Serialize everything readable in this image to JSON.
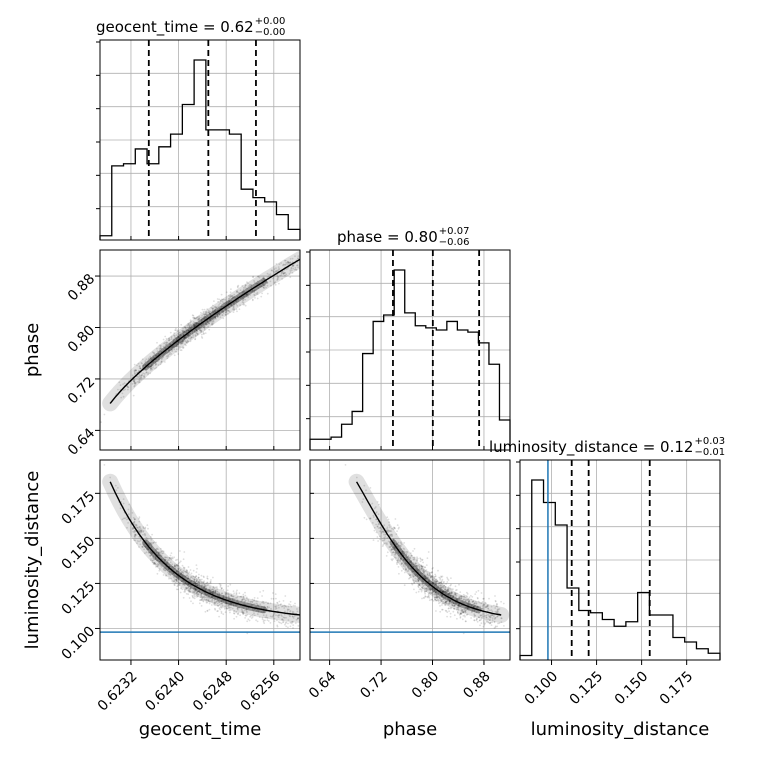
{
  "chart_data": {
    "type": "corner",
    "parameters": [
      "geocent_time",
      "phase",
      "luminosity_distance"
    ],
    "axis_labels": {
      "geocent_time": "geocent_time",
      "phase": "phase",
      "luminosity_distance": "luminosity_distance"
    },
    "ranges": {
      "geocent_time": [
        0.62268,
        0.62604
      ],
      "phase": [
        0.6095,
        0.9205
      ],
      "luminosity_distance": [
        0.0825,
        0.1935
      ]
    },
    "ticks": {
      "geocent_time": {
        "values": [
          0.6232,
          0.624,
          0.6248,
          0.6256
        ],
        "labels": [
          "0.6232",
          "0.6240",
          "0.6248",
          "0.6256"
        ]
      },
      "phase": {
        "values": [
          0.64,
          0.72,
          0.8,
          0.88
        ],
        "labels": [
          "0.64",
          "0.72",
          "0.80",
          "0.88"
        ]
      },
      "luminosity_distance": {
        "values": [
          0.1,
          0.125,
          0.15,
          0.175
        ],
        "labels": [
          "0.100",
          "0.125",
          "0.150",
          "0.175"
        ]
      }
    },
    "titles": [
      {
        "param": "geocent_time",
        "text": "geocent_time = 0.62",
        "sup": "+0.00",
        "sub": "−0.00"
      },
      {
        "param": "phase",
        "text": "phase = 0.80",
        "sup": "+0.07",
        "sub": "−0.06"
      },
      {
        "param": "luminosity_distance",
        "text": "luminosity_distance = 0.12",
        "sup": "+0.03",
        "sub": "−0.01"
      }
    ],
    "quantiles": {
      "geocent_time": [
        0.6235,
        0.6245,
        0.6253
      ],
      "phase": [
        0.7385,
        0.8005,
        0.8725
      ],
      "luminosity_distance": [
        0.1112,
        0.1206,
        0.1545
      ]
    },
    "truths": {
      "luminosity_distance": 0.098
    },
    "truth_color": "#1f77b4",
    "histograms": {
      "geocent_time": [
        0.02,
        0.35,
        0.36,
        0.43,
        0.36,
        0.44,
        0.5,
        0.64,
        0.85,
        0.52,
        0.52,
        0.5,
        0.24,
        0.2,
        0.18,
        0.12,
        0.05
      ],
      "phase": [
        0.05,
        0.05,
        0.06,
        0.12,
        0.18,
        0.45,
        0.6,
        0.63,
        0.84,
        0.64,
        0.58,
        0.57,
        0.56,
        0.6,
        0.56,
        0.55,
        0.5,
        0.4,
        0.14
      ],
      "luminosity_distance": [
        0.02,
        0.8,
        0.7,
        0.6,
        0.32,
        0.22,
        0.21,
        0.18,
        0.15,
        0.17,
        0.3,
        0.2,
        0.2,
        0.1,
        0.08,
        0.05,
        0.03
      ]
    },
    "joint_2d": [
      {
        "x": "geocent_time",
        "y": "phase",
        "relation": "strong positive correlation along a narrow band"
      },
      {
        "x": "geocent_time",
        "y": "luminosity_distance",
        "relation": "negative correlation, curved band"
      },
      {
        "x": "phase",
        "y": "luminosity_distance",
        "relation": "negative correlation, curved band"
      }
    ],
    "grid": true
  }
}
